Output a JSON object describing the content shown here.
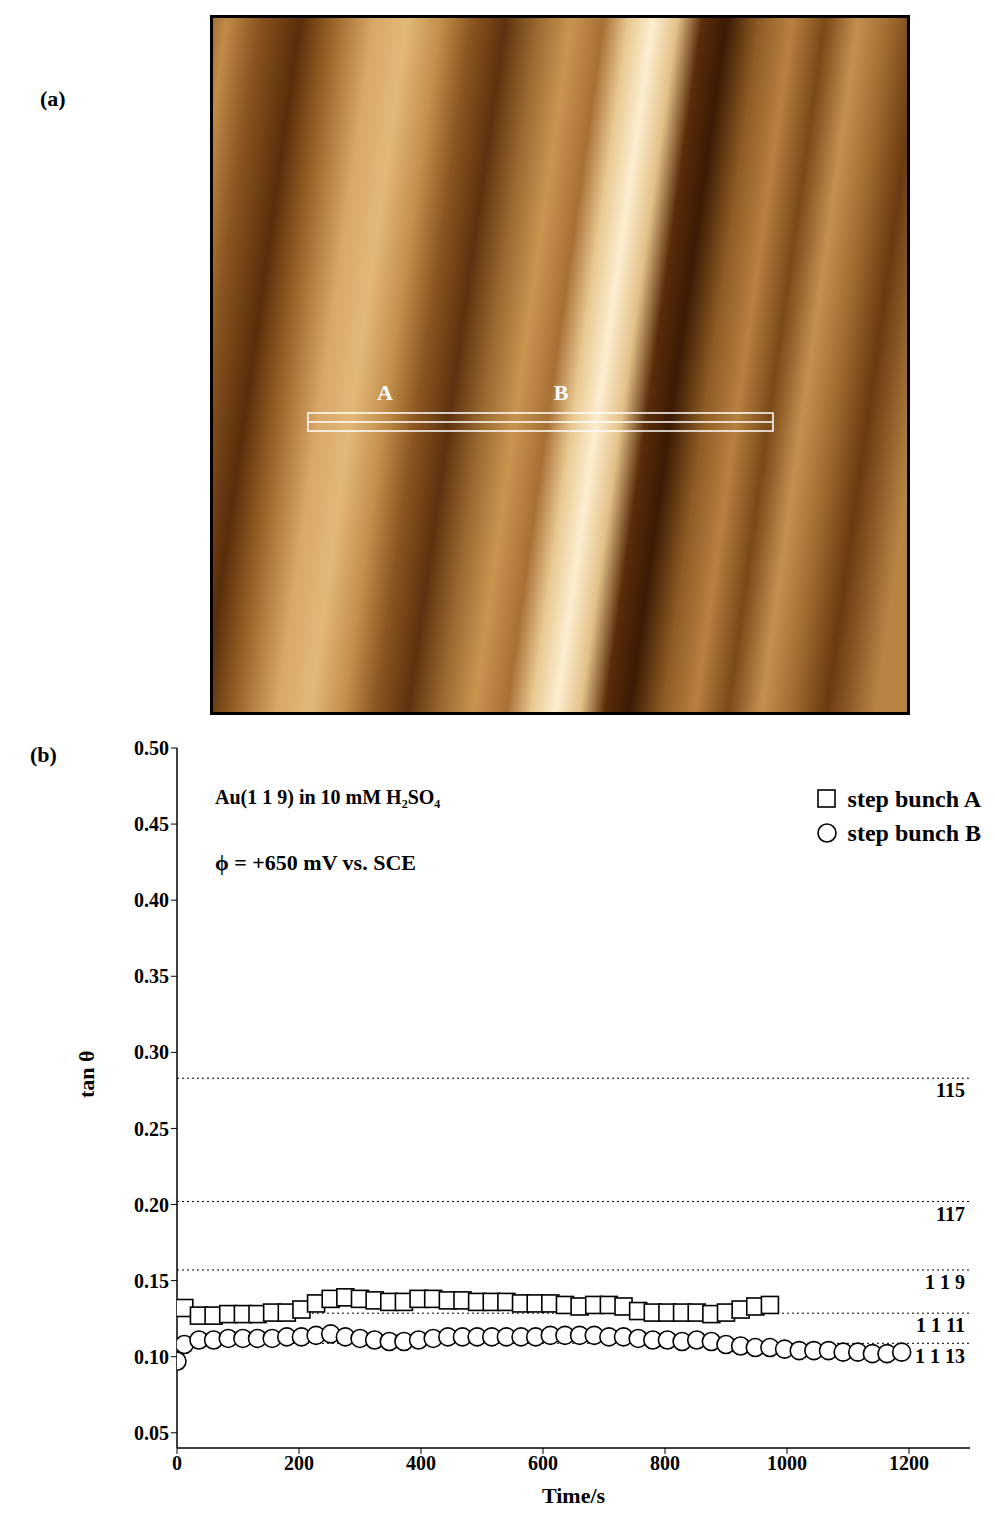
{
  "panel_labels": [
    "(a)",
    "(b)"
  ],
  "image_panel": {
    "labels": [
      "A",
      "B"
    ]
  },
  "chart_data": {
    "type": "scatter",
    "x_label": "Time/s",
    "y_label": "tan θ",
    "annotations": [
      "Au(1 1 9) in 10 mM H₂SO₄",
      "ϕ = +650 mV vs. SCE"
    ],
    "legend": "top-right",
    "grid": false,
    "xlim": [
      0,
      1300
    ],
    "xticks": [
      0,
      200,
      400,
      600,
      800,
      1000,
      1200
    ],
    "ylim": [
      0.04,
      0.5
    ],
    "yticks": [
      0.05,
      {
        "value": 0.1,
        "label": "0.10"
      },
      0.15,
      {
        "value": 0.2,
        "label": "0.20"
      },
      0.25,
      {
        "value": 0.3,
        "label": "0.30"
      },
      0.35,
      {
        "value": 0.4,
        "label": "0.40"
      },
      0.45,
      {
        "value": 0.5,
        "label": "0.50"
      }
    ],
    "reference_lines": [
      {
        "value": 0.283,
        "label": "115"
      },
      {
        "value": 0.202,
        "label": "117"
      },
      {
        "value": 0.157,
        "label": "1 1 9"
      },
      {
        "value": 0.1286,
        "label": "1 1 11"
      },
      {
        "value": 0.1088,
        "label": "1 1 13"
      }
    ],
    "series": [
      {
        "name": "step bunch A",
        "color": "#000000",
        "marker": "square",
        "x": [
          12,
          36,
          60,
          84,
          108,
          132,
          156,
          180,
          204,
          228,
          252,
          276,
          300,
          324,
          348,
          372,
          396,
          420,
          444,
          468,
          492,
          516,
          540,
          564,
          588,
          612,
          636,
          660,
          684,
          708,
          732,
          756,
          780,
          804,
          828,
          852,
          876,
          900,
          924,
          948,
          972
        ],
        "values": [
          0.132,
          0.127,
          0.127,
          0.128,
          0.128,
          0.128,
          0.129,
          0.129,
          0.131,
          0.135,
          0.138,
          0.139,
          0.138,
          0.137,
          0.136,
          0.136,
          0.138,
          0.138,
          0.137,
          0.137,
          0.136,
          0.136,
          0.136,
          0.135,
          0.135,
          0.135,
          0.134,
          0.133,
          0.134,
          0.134,
          0.133,
          0.13,
          0.129,
          0.129,
          0.129,
          0.129,
          0.128,
          0.129,
          0.131,
          0.133,
          0.134
        ]
      },
      {
        "name": "step bunch B",
        "color": "#000000",
        "marker": "circle",
        "x": [
          0,
          12,
          36,
          60,
          84,
          108,
          132,
          156,
          180,
          204,
          228,
          252,
          276,
          300,
          324,
          348,
          372,
          396,
          420,
          444,
          468,
          492,
          516,
          540,
          564,
          588,
          612,
          636,
          660,
          684,
          708,
          732,
          756,
          780,
          804,
          828,
          852,
          876,
          900,
          924,
          948,
          972,
          996,
          1020,
          1044,
          1068,
          1092,
          1116,
          1140,
          1164,
          1188
        ],
        "values": [
          0.097,
          0.108,
          0.111,
          0.111,
          0.112,
          0.112,
          0.112,
          0.112,
          0.113,
          0.113,
          0.114,
          0.115,
          0.113,
          0.112,
          0.111,
          0.11,
          0.11,
          0.111,
          0.112,
          0.113,
          0.113,
          0.113,
          0.113,
          0.113,
          0.113,
          0.113,
          0.114,
          0.114,
          0.114,
          0.114,
          0.113,
          0.113,
          0.112,
          0.111,
          0.111,
          0.11,
          0.111,
          0.11,
          0.108,
          0.107,
          0.106,
          0.106,
          0.105,
          0.104,
          0.104,
          0.104,
          0.103,
          0.103,
          0.102,
          0.102,
          0.103
        ]
      }
    ]
  }
}
